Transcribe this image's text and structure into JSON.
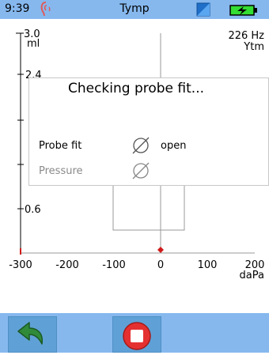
{
  "status_bar": {
    "time": "9:39",
    "app_title": "Tymp",
    "ear_icon": "ear-icon",
    "window_icon": "window-icon",
    "battery_icon": "battery-charging-icon",
    "colors": {
      "bar": "#86b8ee",
      "ear": "#e05a5a",
      "battery": "#33dd33"
    }
  },
  "plot": {
    "y_unit": "ml",
    "frequency": "226 Hz",
    "mode": "Ytm",
    "y_ticks": [
      "3.0",
      "2.4",
      "0.6"
    ],
    "x_ticks": [
      "-300",
      "-200",
      "-100",
      "0",
      "100",
      "200"
    ],
    "x_unit": "daPa"
  },
  "dialog": {
    "title": "Checking probe fit...",
    "rows": [
      {
        "label": "Probe fit",
        "icon": "empty-set-icon",
        "value": "open"
      },
      {
        "label": "Pressure",
        "icon": "empty-set-icon",
        "value": ""
      }
    ]
  },
  "bottom_bar": {
    "back_icon": "back-arrow-icon",
    "stop_icon": "stop-icon",
    "colors": {
      "back": "#2f8a3a",
      "stop": "#e53030"
    }
  }
}
